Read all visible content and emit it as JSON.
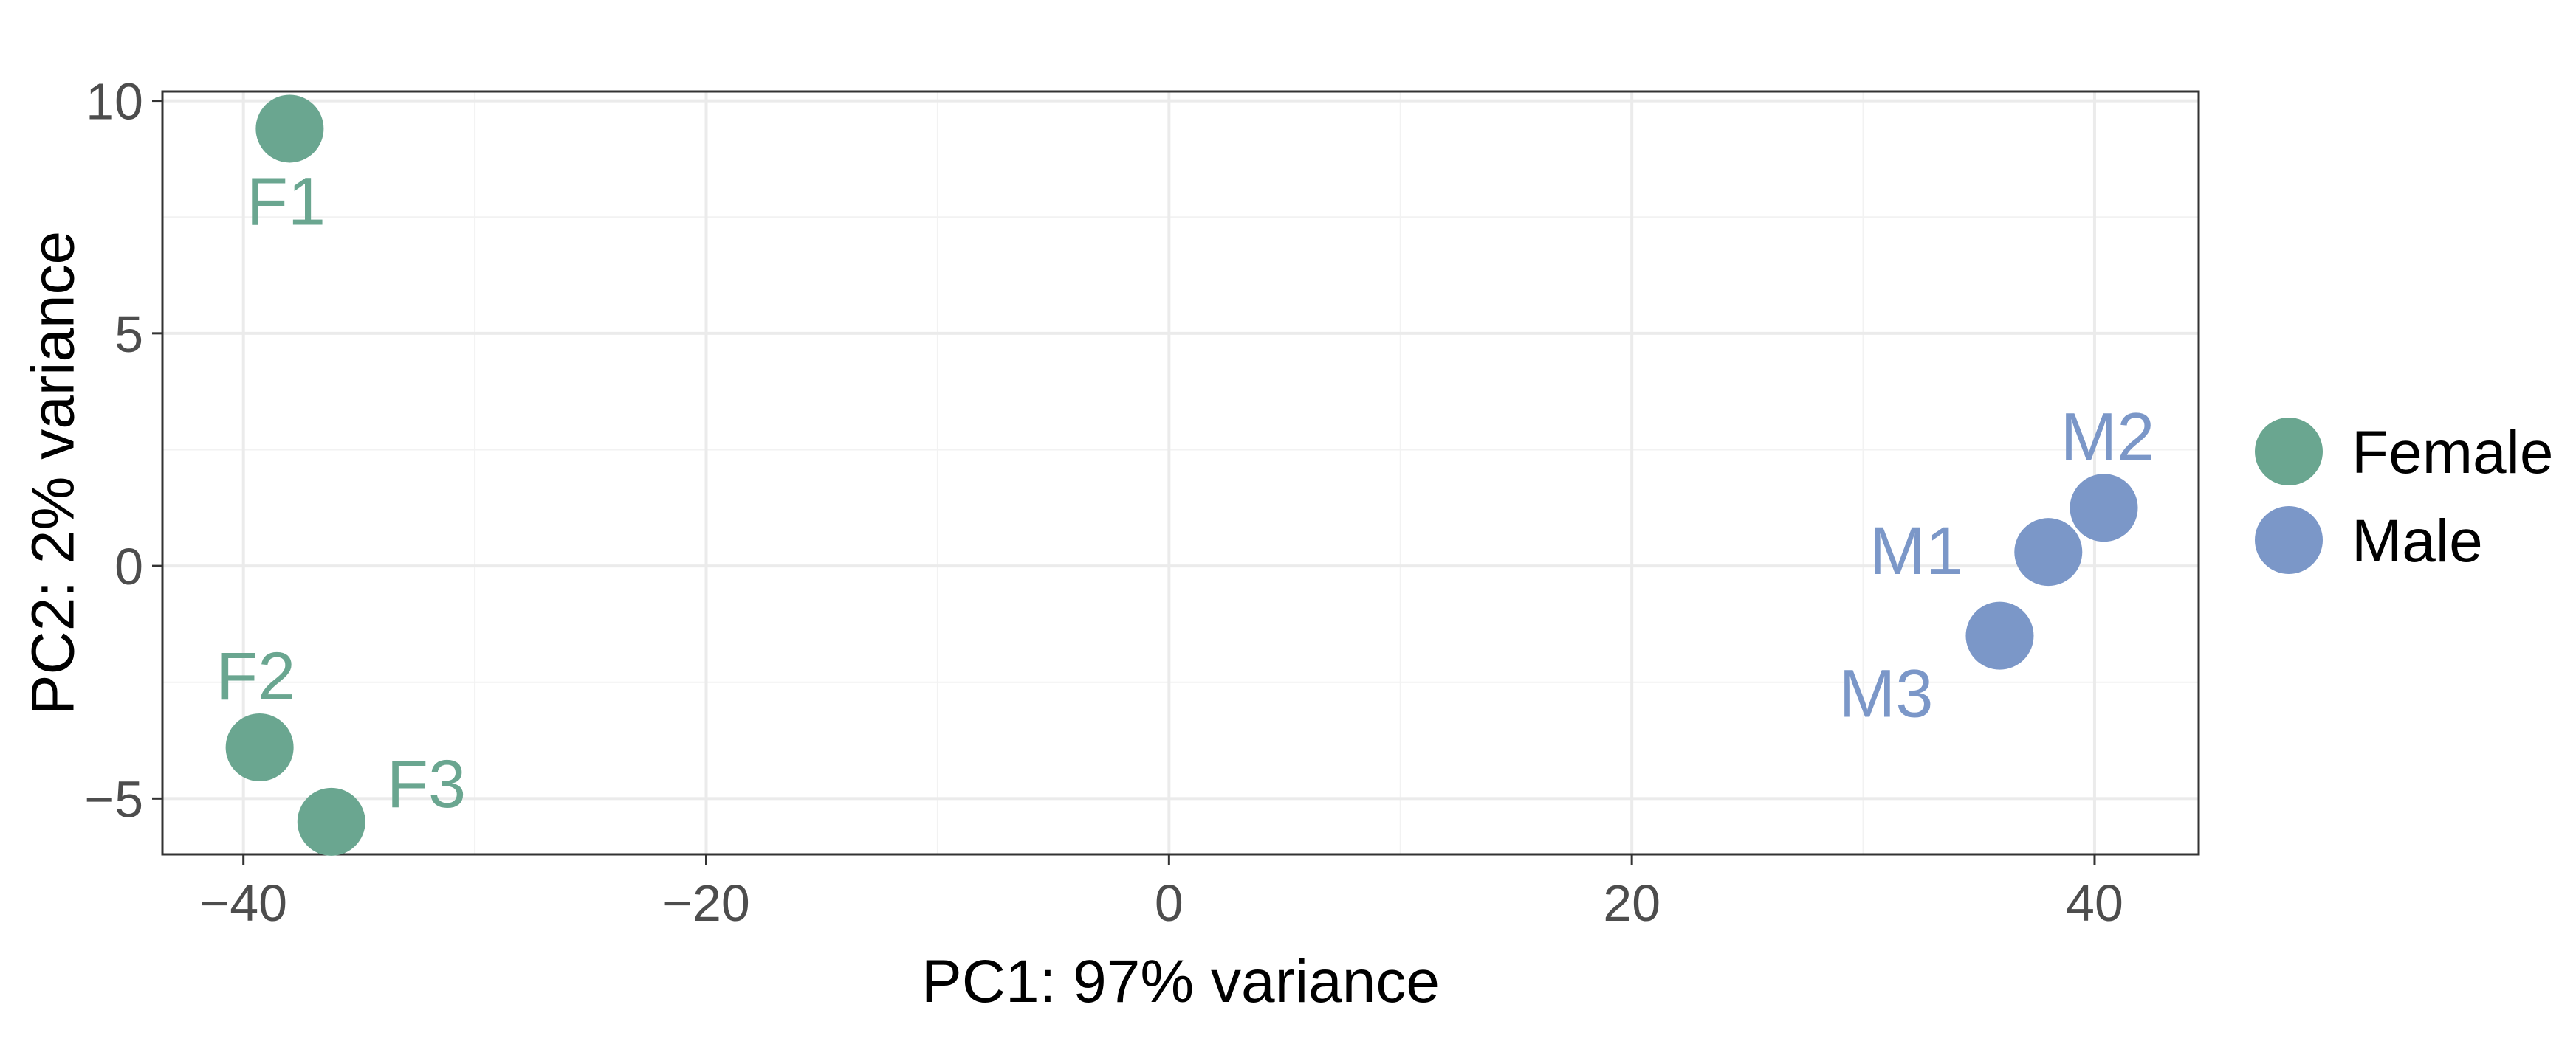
{
  "chart_data": {
    "type": "scatter",
    "title": "",
    "xlabel": "PC1: 97% variance",
    "ylabel": "PC2: 2% variance",
    "xlim": [
      -43.5,
      44.5
    ],
    "ylim": [
      -6.2,
      10.2
    ],
    "x_ticks": [
      -40,
      -20,
      0,
      20,
      40
    ],
    "x_tick_labels": [
      "−40",
      "−20",
      "0",
      "20",
      "40"
    ],
    "x_minor_ticks": [
      -30,
      -10,
      10,
      30
    ],
    "y_ticks": [
      -5,
      0,
      5,
      10
    ],
    "y_tick_labels": [
      "−5",
      "0",
      "5",
      "10"
    ],
    "y_minor_ticks": [
      -2.5,
      2.5,
      7.5
    ],
    "grid": true,
    "legend_position": "right",
    "series": [
      {
        "name": "Female",
        "color": "#6aa690",
        "points": [
          {
            "label": "F1",
            "x": -38.0,
            "y": 9.4
          },
          {
            "label": "F2",
            "x": -39.3,
            "y": -3.9
          },
          {
            "label": "F3",
            "x": -36.2,
            "y": -5.5
          }
        ]
      },
      {
        "name": "Male",
        "color": "#7b97c8",
        "points": [
          {
            "label": "M1",
            "x": 38.0,
            "y": 0.3
          },
          {
            "label": "M2",
            "x": 40.4,
            "y": 1.25
          },
          {
            "label": "M3",
            "x": 35.9,
            "y": -1.5
          }
        ]
      }
    ]
  }
}
